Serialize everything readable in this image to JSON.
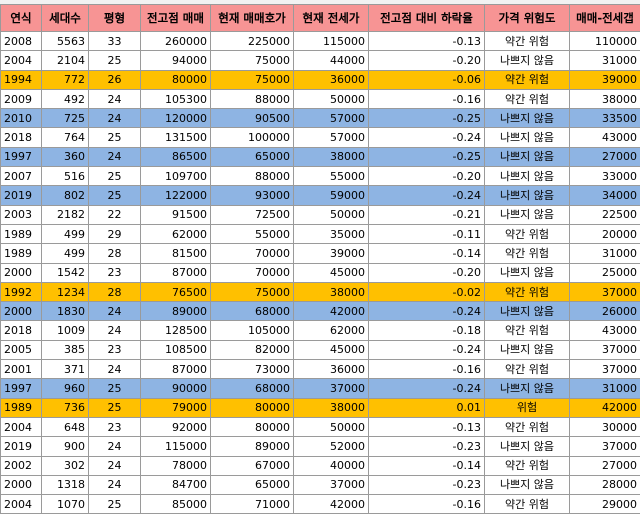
{
  "columns": [
    "연식",
    "세대수",
    "평형",
    "전고점 매매",
    "현재 매매호가",
    "현재 전세가",
    "전고점 대비 하락율",
    "가격 위험도",
    "매매-전세갭"
  ],
  "highlight_colors": {
    "header": "#f79494",
    "yellow": "#ffc000",
    "blue": "#8eb4e3"
  },
  "rows": [
    {
      "year": "2008",
      "households": "5563",
      "size": "33",
      "peak": "260000",
      "ask": "225000",
      "jeonse": "115000",
      "drop": "-0.13",
      "risk": "약간 위험",
      "gap": "110000",
      "highlight": ""
    },
    {
      "year": "2004",
      "households": "2104",
      "size": "25",
      "peak": "94000",
      "ask": "75000",
      "jeonse": "44000",
      "drop": "-0.20",
      "risk": "나쁘지 않음",
      "gap": "31000",
      "highlight": ""
    },
    {
      "year": "1994",
      "households": "772",
      "size": "26",
      "peak": "80000",
      "ask": "75000",
      "jeonse": "36000",
      "drop": "-0.06",
      "risk": "약간 위험",
      "gap": "39000",
      "highlight": "yellow"
    },
    {
      "year": "2009",
      "households": "492",
      "size": "24",
      "peak": "105300",
      "ask": "88000",
      "jeonse": "50000",
      "drop": "-0.16",
      "risk": "약간 위험",
      "gap": "38000",
      "highlight": ""
    },
    {
      "year": "2010",
      "households": "725",
      "size": "24",
      "peak": "120000",
      "ask": "90500",
      "jeonse": "57000",
      "drop": "-0.25",
      "risk": "나쁘지 않음",
      "gap": "33500",
      "highlight": "blue"
    },
    {
      "year": "2018",
      "households": "764",
      "size": "25",
      "peak": "131500",
      "ask": "100000",
      "jeonse": "57000",
      "drop": "-0.24",
      "risk": "나쁘지 않음",
      "gap": "43000",
      "highlight": ""
    },
    {
      "year": "1997",
      "households": "360",
      "size": "24",
      "peak": "86500",
      "ask": "65000",
      "jeonse": "38000",
      "drop": "-0.25",
      "risk": "나쁘지 않음",
      "gap": "27000",
      "highlight": "blue"
    },
    {
      "year": "2007",
      "households": "516",
      "size": "25",
      "peak": "109700",
      "ask": "88000",
      "jeonse": "55000",
      "drop": "-0.20",
      "risk": "나쁘지 않음",
      "gap": "33000",
      "highlight": ""
    },
    {
      "year": "2019",
      "households": "802",
      "size": "25",
      "peak": "122000",
      "ask": "93000",
      "jeonse": "59000",
      "drop": "-0.24",
      "risk": "나쁘지 않음",
      "gap": "34000",
      "highlight": "blue"
    },
    {
      "year": "2003",
      "households": "2182",
      "size": "22",
      "peak": "91500",
      "ask": "72500",
      "jeonse": "50000",
      "drop": "-0.21",
      "risk": "나쁘지 않음",
      "gap": "22500",
      "highlight": ""
    },
    {
      "year": "1989",
      "households": "499",
      "size": "29",
      "peak": "62000",
      "ask": "55000",
      "jeonse": "35000",
      "drop": "-0.11",
      "risk": "약간 위험",
      "gap": "20000",
      "highlight": ""
    },
    {
      "year": "1989",
      "households": "499",
      "size": "28",
      "peak": "81500",
      "ask": "70000",
      "jeonse": "39000",
      "drop": "-0.14",
      "risk": "약간 위험",
      "gap": "31000",
      "highlight": ""
    },
    {
      "year": "2000",
      "households": "1542",
      "size": "23",
      "peak": "87000",
      "ask": "70000",
      "jeonse": "45000",
      "drop": "-0.20",
      "risk": "나쁘지 않음",
      "gap": "25000",
      "highlight": ""
    },
    {
      "year": "1992",
      "households": "1234",
      "size": "28",
      "peak": "76500",
      "ask": "75000",
      "jeonse": "38000",
      "drop": "-0.02",
      "risk": "약간 위험",
      "gap": "37000",
      "highlight": "yellow"
    },
    {
      "year": "2000",
      "households": "1830",
      "size": "24",
      "peak": "89000",
      "ask": "68000",
      "jeonse": "42000",
      "drop": "-0.24",
      "risk": "나쁘지 않음",
      "gap": "26000",
      "highlight": "blue"
    },
    {
      "year": "2018",
      "households": "1009",
      "size": "24",
      "peak": "128500",
      "ask": "105000",
      "jeonse": "62000",
      "drop": "-0.18",
      "risk": "약간 위험",
      "gap": "43000",
      "highlight": ""
    },
    {
      "year": "2005",
      "households": "385",
      "size": "23",
      "peak": "108500",
      "ask": "82000",
      "jeonse": "45000",
      "drop": "-0.24",
      "risk": "나쁘지 않음",
      "gap": "37000",
      "highlight": ""
    },
    {
      "year": "2001",
      "households": "371",
      "size": "24",
      "peak": "87000",
      "ask": "73000",
      "jeonse": "36000",
      "drop": "-0.16",
      "risk": "약간 위험",
      "gap": "37000",
      "highlight": ""
    },
    {
      "year": "1997",
      "households": "960",
      "size": "25",
      "peak": "90000",
      "ask": "68000",
      "jeonse": "37000",
      "drop": "-0.24",
      "risk": "나쁘지 않음",
      "gap": "31000",
      "highlight": "blue"
    },
    {
      "year": "1989",
      "households": "736",
      "size": "25",
      "peak": "79000",
      "ask": "80000",
      "jeonse": "38000",
      "drop": "0.01",
      "risk": "위험",
      "gap": "42000",
      "highlight": "yellow"
    },
    {
      "year": "2004",
      "households": "648",
      "size": "23",
      "peak": "92000",
      "ask": "80000",
      "jeonse": "50000",
      "drop": "-0.13",
      "risk": "약간 위험",
      "gap": "30000",
      "highlight": ""
    },
    {
      "year": "2019",
      "households": "900",
      "size": "24",
      "peak": "115000",
      "ask": "89000",
      "jeonse": "52000",
      "drop": "-0.23",
      "risk": "나쁘지 않음",
      "gap": "37000",
      "highlight": ""
    },
    {
      "year": "2002",
      "households": "302",
      "size": "24",
      "peak": "78000",
      "ask": "67000",
      "jeonse": "40000",
      "drop": "-0.14",
      "risk": "약간 위험",
      "gap": "27000",
      "highlight": ""
    },
    {
      "year": "2000",
      "households": "1318",
      "size": "24",
      "peak": "84700",
      "ask": "65000",
      "jeonse": "37000",
      "drop": "-0.23",
      "risk": "나쁘지 않음",
      "gap": "28000",
      "highlight": ""
    },
    {
      "year": "2004",
      "households": "1070",
      "size": "25",
      "peak": "85000",
      "ask": "71000",
      "jeonse": "42000",
      "drop": "-0.16",
      "risk": "약간 위험",
      "gap": "29000",
      "highlight": ""
    }
  ]
}
